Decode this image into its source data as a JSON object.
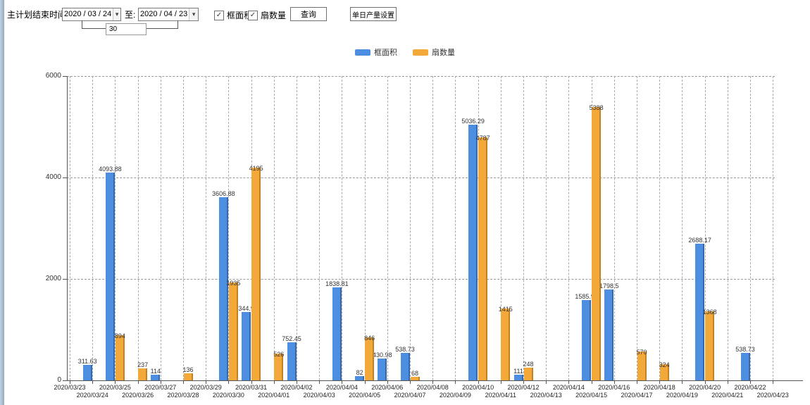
{
  "icons": {
    "dropdown_arrow": "▾",
    "checkbox_check": "✓"
  },
  "colors": {
    "series_frame_area": "#4e8ee0",
    "series_frame_area_edge": "rgba(25,60,120,0.45)",
    "series_fan_count": "#f3a83a",
    "series_fan_count_edge": "rgba(150,90,10,0.5)",
    "grid": "#999999",
    "axis": "#555555"
  },
  "toolbar": {
    "plan_end_label": "主计划结束时间:",
    "date_from": "2020 / 03 / 24",
    "to_label": "至:",
    "date_to": "2020 / 04 / 23",
    "interval_days": "30",
    "checkbox_frame_area": {
      "label": "框面积",
      "checked": true
    },
    "checkbox_fan_count": {
      "label": "扇数量",
      "checked": true
    },
    "query_button": "查询",
    "daily_output_button": "单日产量设置"
  },
  "legend": {
    "items": [
      {
        "label": "框面积",
        "color": "#4e8ee0"
      },
      {
        "label": "扇数量",
        "color": "#f3a83a"
      }
    ]
  },
  "chart_data": {
    "type": "bar",
    "title": "",
    "xlabel": "",
    "ylabel": "",
    "ylim": [
      0,
      6000
    ],
    "yticks": [
      0,
      2000,
      4000,
      6000
    ],
    "grid": true,
    "legend_position": "top",
    "x_label_layout": "staggered-two-rows",
    "categories": [
      "2020/03/23",
      "2020/03/24",
      "2020/03/25",
      "2020/03/26",
      "2020/03/27",
      "2020/03/28",
      "2020/03/29",
      "2020/03/30",
      "2020/03/31",
      "2020/04/01",
      "2020/04/02",
      "2020/04/03",
      "2020/04/04",
      "2020/04/05",
      "2020/04/06",
      "2020/04/07",
      "2020/04/08",
      "2020/04/09",
      "2020/04/10",
      "2020/04/11",
      "2020/04/12",
      "2020/04/13",
      "2020/04/14",
      "2020/04/15",
      "2020/04/16",
      "2020/04/17",
      "2020/04/18",
      "2020/04/19",
      "2020/04/20",
      "2020/04/21",
      "2020/04/22",
      "2020/04/23"
    ],
    "series": [
      {
        "name": "框面积",
        "color": "#4e8ee0",
        "values": [
          null,
          311.63,
          4093.88,
          null,
          114,
          null,
          null,
          3606.88,
          1344.95,
          null,
          752.45,
          null,
          1838.81,
          82,
          430.98,
          538.73,
          null,
          null,
          5036.29,
          null,
          111,
          null,
          null,
          1585.96,
          1798.5,
          null,
          null,
          null,
          2688.17,
          null,
          538.73,
          null
        ]
      },
      {
        "name": "扇数量",
        "color": "#f3a83a",
        "values": [
          null,
          null,
          894,
          237,
          null,
          136,
          null,
          1935,
          4195,
          526,
          null,
          null,
          null,
          846,
          null,
          68,
          null,
          null,
          4787,
          1415,
          248,
          null,
          null,
          5388,
          null,
          570,
          324,
          null,
          1368,
          null,
          null,
          null
        ]
      }
    ]
  }
}
